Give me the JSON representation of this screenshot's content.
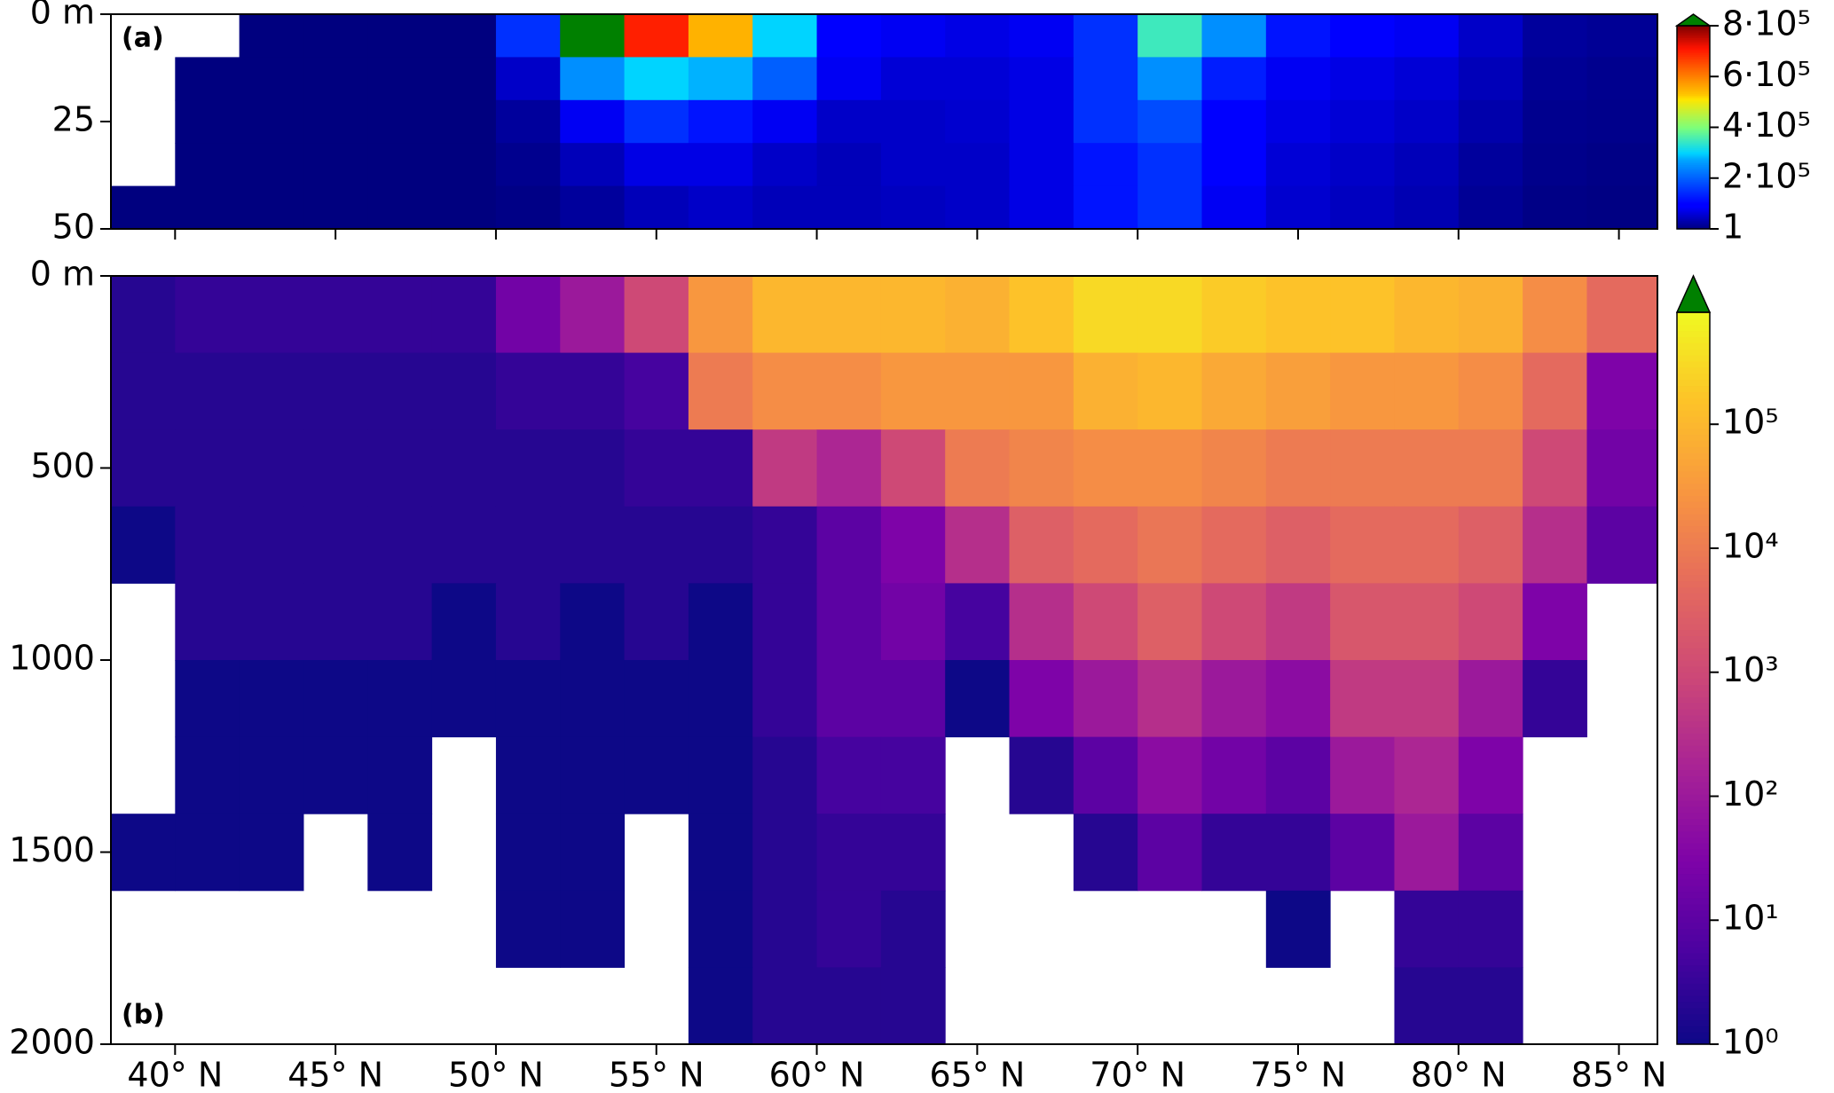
{
  "chart_data": [
    {
      "type": "heatmap",
      "panel_label": "(a)",
      "x_bins": [
        38,
        40,
        42,
        44,
        46,
        48,
        50,
        52,
        54,
        56,
        58,
        60,
        62,
        64,
        66,
        68,
        70,
        72,
        74,
        76,
        78,
        80,
        82,
        84,
        86.2
      ],
      "y_bins": [
        0,
        10,
        20,
        30,
        40,
        50
      ],
      "values": [
        [
          null,
          null,
          1,
          1,
          1,
          1,
          150000,
          900000,
          700000,
          550000,
          300000,
          100000,
          80000,
          70000,
          80000,
          150000,
          350000,
          250000,
          120000,
          100000,
          80000,
          50000,
          20000,
          15000
        ],
        [
          null,
          1,
          1,
          1,
          1,
          1,
          50000,
          250000,
          300000,
          280000,
          200000,
          80000,
          60000,
          60000,
          70000,
          150000,
          250000,
          130000,
          80000,
          70000,
          60000,
          40000,
          15000,
          10000
        ],
        [
          null,
          1,
          1,
          1,
          1,
          1,
          20000,
          80000,
          150000,
          120000,
          80000,
          50000,
          50000,
          55000,
          70000,
          150000,
          180000,
          100000,
          70000,
          60000,
          50000,
          30000,
          10000,
          8000
        ],
        [
          null,
          1,
          1,
          1,
          1,
          1,
          10000,
          40000,
          70000,
          70000,
          50000,
          40000,
          50000,
          50000,
          70000,
          120000,
          150000,
          90000,
          60000,
          50000,
          40000,
          20000,
          8000,
          5000
        ],
        [
          1,
          1,
          1,
          1,
          1,
          1,
          5000,
          20000,
          40000,
          50000,
          40000,
          40000,
          45000,
          50000,
          70000,
          120000,
          150000,
          80000,
          55000,
          45000,
          35000,
          15000,
          5000,
          3000
        ]
      ],
      "xlim": [
        38,
        86.2
      ],
      "ylim": [
        50,
        0
      ],
      "yticks": [
        {
          "value": 0,
          "label": "0 m"
        },
        25,
        50
      ],
      "colorbar": {
        "scale": "linear",
        "colormap": "jet",
        "lim": [
          1,
          800000
        ],
        "extend": "max",
        "over_color": "#008000",
        "ticks": [
          1,
          {
            "value": 200000,
            "label": "2·10⁵"
          },
          {
            "value": 400000,
            "label": "4·10⁵"
          },
          {
            "value": 600000,
            "label": "6·10⁵"
          },
          {
            "value": 800000,
            "label": "8·10⁵"
          }
        ]
      }
    },
    {
      "type": "heatmap",
      "panel_label": "(b)",
      "x_bins": [
        38,
        40,
        42,
        44,
        46,
        48,
        50,
        52,
        54,
        56,
        58,
        60,
        62,
        64,
        66,
        68,
        70,
        72,
        74,
        76,
        78,
        80,
        82,
        84,
        86.2
      ],
      "y_bins": [
        0,
        200,
        400,
        600,
        800,
        1000,
        1200,
        1400,
        1600,
        1800,
        2000
      ],
      "values": [
        [
          2,
          3,
          3,
          3,
          3,
          3,
          20,
          100,
          1000,
          30000,
          100000,
          100000,
          100000,
          80000,
          150000,
          300000,
          300000,
          200000,
          150000,
          150000,
          100000,
          80000,
          20000,
          5000
        ],
        [
          2,
          2,
          2,
          2,
          2,
          2,
          3,
          3,
          5,
          10000,
          20000,
          20000,
          30000,
          30000,
          30000,
          80000,
          100000,
          60000,
          40000,
          30000,
          30000,
          20000,
          5000,
          30
        ],
        [
          2,
          2,
          2,
          2,
          2,
          2,
          2,
          2,
          3,
          3,
          500,
          200,
          1000,
          10000,
          15000,
          20000,
          20000,
          15000,
          10000,
          10000,
          10000,
          10000,
          1000,
          20
        ],
        [
          1,
          2,
          2,
          2,
          2,
          2,
          2,
          2,
          2,
          2,
          3,
          10,
          30,
          300,
          3000,
          5000,
          8000,
          5000,
          3000,
          5000,
          5000,
          3000,
          300,
          10
        ],
        [
          null,
          2,
          2,
          2,
          2,
          1,
          2,
          1,
          2,
          1,
          3,
          10,
          20,
          5,
          300,
          1000,
          3000,
          1000,
          500,
          2000,
          2000,
          1000,
          30,
          null
        ],
        [
          null,
          1,
          1,
          1,
          1,
          1,
          1,
          1,
          1,
          1,
          3,
          10,
          10,
          1,
          30,
          100,
          300,
          100,
          50,
          500,
          500,
          100,
          3,
          null
        ],
        [
          null,
          1,
          1,
          1,
          1,
          null,
          1,
          1,
          1,
          1,
          2,
          5,
          5,
          null,
          2,
          10,
          50,
          20,
          10,
          100,
          200,
          30,
          null,
          null
        ],
        [
          1,
          1,
          1,
          null,
          1,
          null,
          1,
          1,
          null,
          1,
          2,
          3,
          3,
          null,
          null,
          2,
          10,
          3,
          3,
          10,
          100,
          10,
          null,
          null
        ],
        [
          null,
          null,
          null,
          null,
          null,
          null,
          1,
          1,
          null,
          1,
          2,
          3,
          2,
          null,
          null,
          null,
          null,
          null,
          1,
          null,
          3,
          3,
          null,
          null
        ],
        [
          null,
          null,
          null,
          null,
          null,
          null,
          null,
          null,
          null,
          1,
          2,
          2,
          2,
          null,
          null,
          null,
          null,
          null,
          null,
          null,
          2,
          2,
          null,
          null
        ]
      ],
      "xlim": [
        38,
        86.2
      ],
      "ylim": [
        2000,
        0
      ],
      "xticks": [
        {
          "value": 40,
          "label": "40° N"
        },
        {
          "value": 45,
          "label": "45° N"
        },
        {
          "value": 50,
          "label": "50° N"
        },
        {
          "value": 55,
          "label": "55° N"
        },
        {
          "value": 60,
          "label": "60° N"
        },
        {
          "value": 65,
          "label": "65° N"
        },
        {
          "value": 70,
          "label": "70° N"
        },
        {
          "value": 75,
          "label": "75° N"
        },
        {
          "value": 80,
          "label": "80° N"
        },
        {
          "value": 85,
          "label": "85° N"
        }
      ],
      "yticks": [
        {
          "value": 0,
          "label": "0 m"
        },
        500,
        1000,
        1500,
        2000
      ],
      "colorbar": {
        "scale": "log",
        "colormap": "plasma",
        "lim": [
          1,
          800000
        ],
        "extend": "max",
        "over_color": "#008000",
        "ticks": [
          {
            "value": 1,
            "label": "10⁰"
          },
          {
            "value": 10,
            "label": "10¹"
          },
          {
            "value": 100,
            "label": "10²"
          },
          {
            "value": 1000,
            "label": "10³"
          },
          {
            "value": 10000,
            "label": "10⁴"
          },
          {
            "value": 100000,
            "label": "10⁵"
          }
        ]
      }
    }
  ]
}
